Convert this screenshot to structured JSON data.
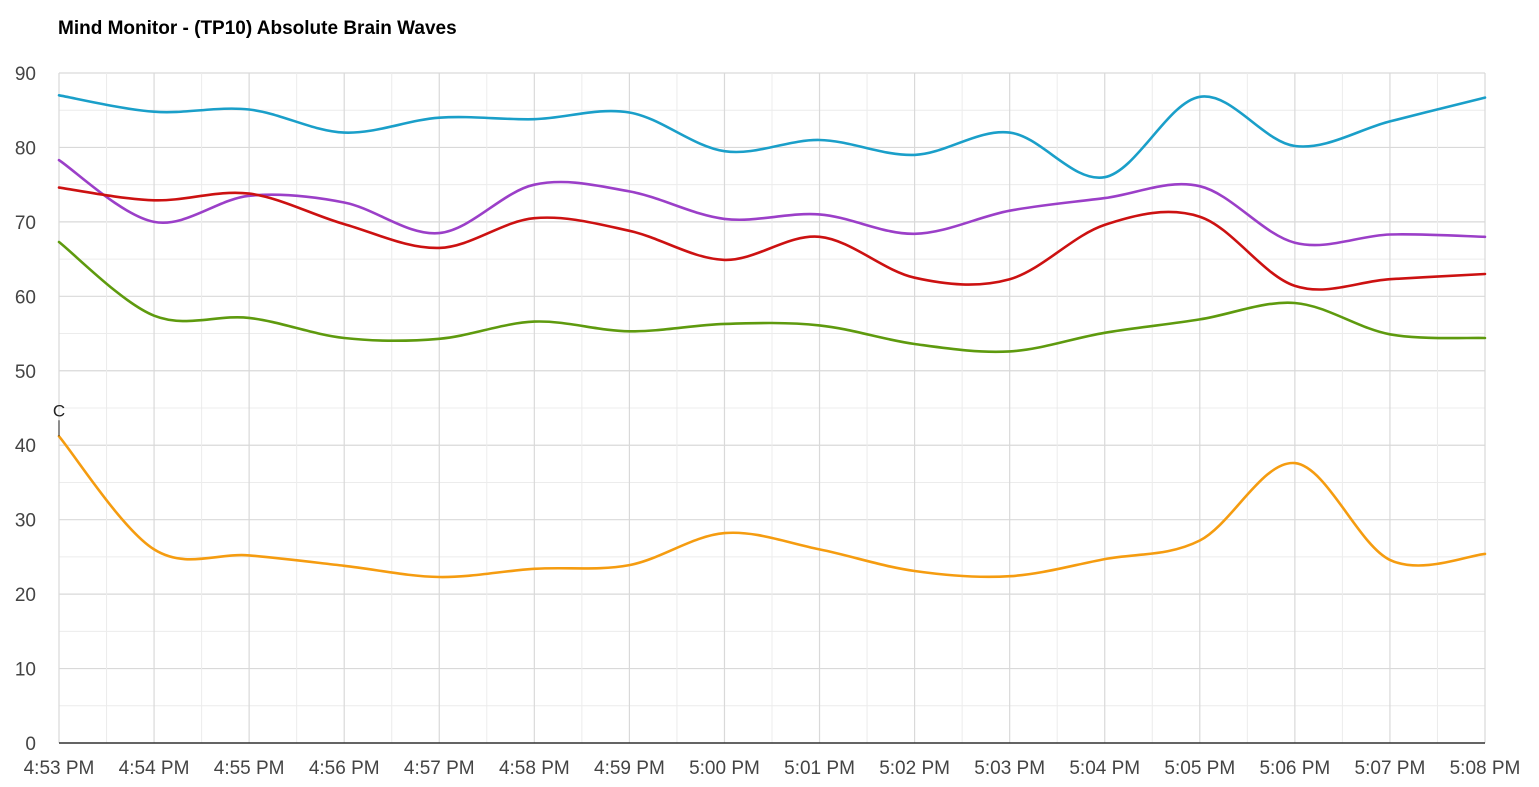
{
  "chart_data": {
    "type": "line",
    "title": "Mind Monitor - (TP10) Absolute Brain Waves",
    "xlabel": "",
    "ylabel": "",
    "ylim": [
      0,
      90
    ],
    "yticks": [
      0,
      10,
      20,
      30,
      40,
      50,
      60,
      70,
      80,
      90
    ],
    "xlim": [
      "4:53 PM",
      "5:08 PM"
    ],
    "x_tick_labels": [
      "4:53 PM",
      "4:54 PM",
      "4:55 PM",
      "4:56 PM",
      "4:57 PM",
      "4:58 PM",
      "4:59 PM",
      "5:00 PM",
      "5:01 PM",
      "5:02 PM",
      "5:03 PM",
      "5:04 PM",
      "5:05 PM",
      "5:06 PM",
      "5:07 PM",
      "5:08 PM"
    ],
    "x": [
      "4:53 PM",
      "4:54 PM",
      "4:55 PM",
      "4:56 PM",
      "4:57 PM",
      "4:58 PM",
      "4:59 PM",
      "5:00 PM",
      "5:01 PM",
      "5:02 PM",
      "5:03 PM",
      "5:04 PM",
      "5:05 PM",
      "5:06 PM",
      "5:07 PM",
      "5:08 PM"
    ],
    "grid": true,
    "legend": "none",
    "series": [
      {
        "color": "#1a9fc9",
        "values": [
          87.0,
          84.8,
          85.1,
          82.0,
          84.0,
          83.8,
          84.7,
          79.5,
          81.0,
          79.0,
          82.0,
          76.0,
          86.8,
          80.2,
          83.5,
          86.7
        ]
      },
      {
        "color": "#9b3fc8",
        "values": [
          78.3,
          70.0,
          73.5,
          72.6,
          68.5,
          75.0,
          74.1,
          70.4,
          71.0,
          68.4,
          71.5,
          73.2,
          74.8,
          67.2,
          68.3,
          68.0
        ]
      },
      {
        "color": "#cc1111",
        "values": [
          74.6,
          72.9,
          73.8,
          69.7,
          66.5,
          70.5,
          68.8,
          64.9,
          68.0,
          62.5,
          62.3,
          69.6,
          70.7,
          61.4,
          62.3,
          63.0
        ]
      },
      {
        "color": "#5e9a0e",
        "values": [
          67.3,
          57.4,
          57.1,
          54.4,
          54.3,
          56.6,
          55.3,
          56.3,
          56.1,
          53.6,
          52.6,
          55.1,
          56.9,
          59.1,
          54.9,
          54.4
        ]
      },
      {
        "color": "#f59c10",
        "values": [
          41.2,
          26.0,
          25.2,
          23.8,
          22.3,
          23.4,
          23.9,
          28.2,
          26.0,
          23.1,
          22.4,
          24.7,
          27.2,
          37.6,
          24.6,
          25.4
        ]
      }
    ],
    "annotations": [
      {
        "text": "C",
        "x": "4:53 PM"
      }
    ]
  }
}
